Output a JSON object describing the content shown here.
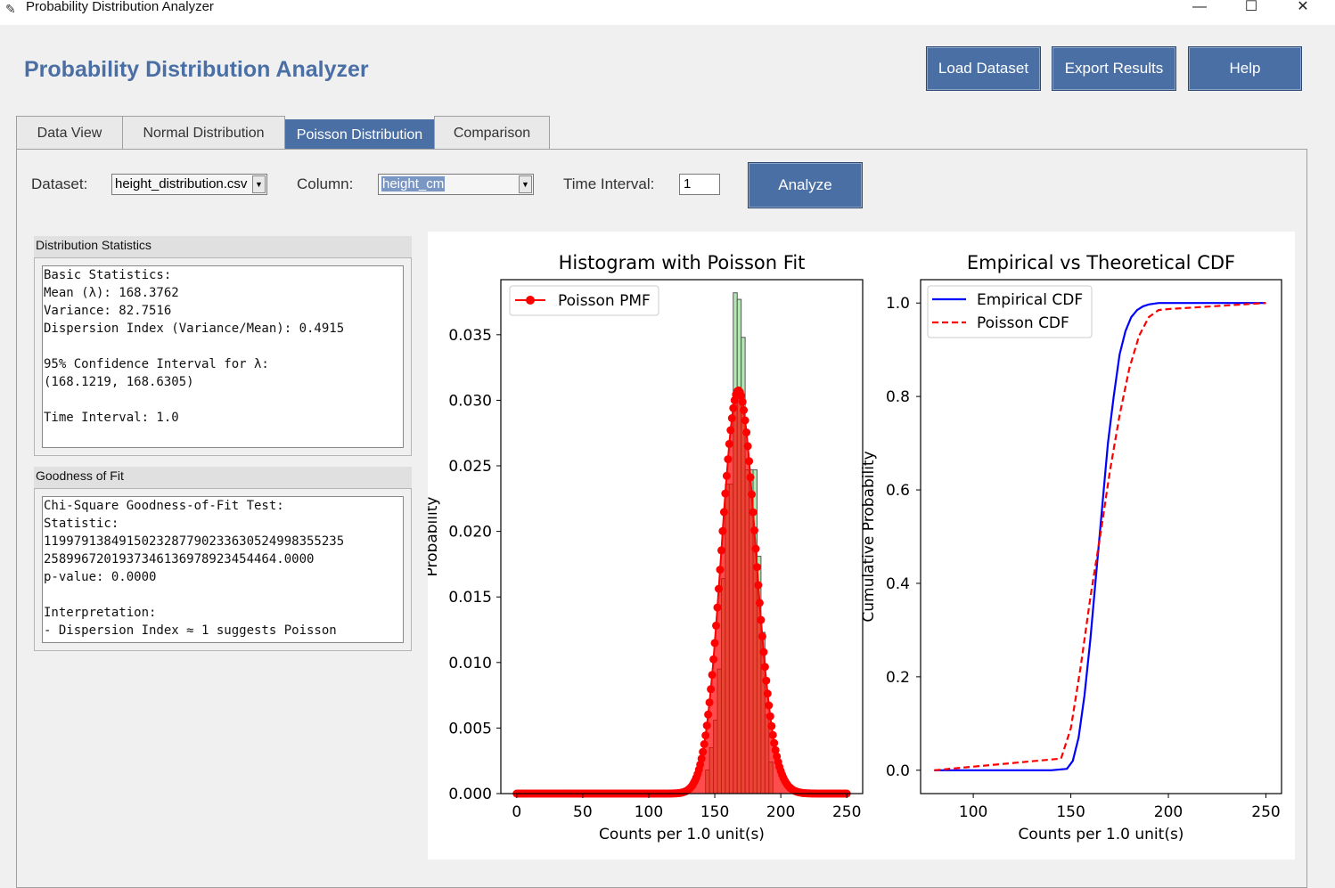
{
  "window": {
    "title": "Probability Distribution Analyzer",
    "minimize_glyph": "—",
    "maximize_glyph": "☐",
    "close_glyph": "✕"
  },
  "header": {
    "title": "Probability Distribution Analyzer",
    "load_label": "Load Dataset",
    "export_label": "Export Results",
    "help_label": "Help"
  },
  "tabs": [
    {
      "label": "Data View"
    },
    {
      "label": "Normal Distribution"
    },
    {
      "label": "Poisson Distribution",
      "active": true
    },
    {
      "label": "Comparison"
    }
  ],
  "controls": {
    "dataset_label": "Dataset:",
    "dataset_value": "height_distribution.csv",
    "column_label": "Column:",
    "column_value": "height_cm",
    "interval_label": "Time Interval:",
    "interval_value": "1",
    "analyze_label": "Analyze"
  },
  "stats": {
    "title": "Distribution Statistics",
    "lines": [
      "Basic Statistics:",
      "Mean (λ): 168.3762",
      "Variance: 82.7516",
      "Dispersion Index (Variance/Mean): 0.4915",
      "",
      "95% Confidence Interval for λ:",
      "(168.1219, 168.6305)",
      "",
      "Time Interval: 1.0"
    ]
  },
  "fit": {
    "title": "Goodness of Fit",
    "lines": [
      "Chi-Square Goodness-of-Fit Test:",
      "Statistic:",
      "119979138491502328779023363052499835523​5",
      "25899672019373461369789234544​64.0000",
      "p-value: 0.0000",
      "",
      "Interpretation:",
      "- Dispersion Index ≈ 1 suggests Poisson"
    ]
  },
  "colors": {
    "accent": "#4a6fa5",
    "hist_fill": "#b3e6b3",
    "pmf": "#ff0000",
    "empirical": "#0000ff",
    "poisson_cdf": "#ff0000"
  },
  "chart_data": [
    {
      "type": "bar",
      "title": "Histogram with Poisson Fit",
      "xlabel": "Counts per 1.0 unit(s)",
      "ylabel": "Probability",
      "xlim": [
        -12,
        262
      ],
      "ylim": [
        0,
        0.0392
      ],
      "xticks": [
        0,
        50,
        100,
        150,
        200,
        250
      ],
      "yticks": [
        0.0,
        0.005,
        0.01,
        0.015,
        0.02,
        0.025,
        0.03,
        0.035
      ],
      "ytick_labels": [
        "0.000",
        "0.005",
        "0.010",
        "0.015",
        "0.020",
        "0.025",
        "0.030",
        "0.035"
      ],
      "legend": [
        "Poisson PMF"
      ],
      "legend_position": "top-left",
      "histogram": {
        "bins": [
          [
            143,
            146
          ],
          [
            146,
            149
          ],
          [
            149,
            152
          ],
          [
            152,
            155
          ],
          [
            155,
            158
          ],
          [
            158,
            161
          ],
          [
            161,
            164
          ],
          [
            164,
            167
          ],
          [
            167,
            170
          ],
          [
            170,
            173
          ],
          [
            173,
            176
          ],
          [
            176,
            179
          ],
          [
            179,
            182
          ],
          [
            182,
            185
          ],
          [
            185,
            188
          ],
          [
            188,
            191
          ],
          [
            191,
            194
          ]
        ],
        "values": [
          0.0018,
          0.0035,
          0.0056,
          0.0095,
          0.0164,
          0.0236,
          0.0236,
          0.0382,
          0.0377,
          0.0348,
          0.0247,
          0.0247,
          0.0247,
          0.0181,
          0.0123,
          0.006,
          0.0024
        ]
      },
      "series": [
        {
          "name": "Poisson PMF",
          "kind": "line-markers",
          "lambda": 168.3762,
          "x_range": [
            0,
            250
          ]
        }
      ]
    },
    {
      "type": "line",
      "title": "Empirical vs Theoretical CDF",
      "xlabel": "Counts per 1.0 unit(s)",
      "ylabel": "Cumulative Probability",
      "xlim": [
        73,
        258
      ],
      "ylim": [
        -0.05,
        1.05
      ],
      "xticks": [
        100,
        150,
        200,
        250
      ],
      "yticks": [
        0.0,
        0.2,
        0.4,
        0.6,
        0.8,
        1.0
      ],
      "ytick_labels": [
        "0.0",
        "0.2",
        "0.4",
        "0.6",
        "0.8",
        "1.0"
      ],
      "legend": [
        "Empirical CDF",
        "Poisson CDF"
      ],
      "legend_position": "top-left",
      "series": [
        {
          "name": "Empirical CDF",
          "style": "solid",
          "x": [
            80,
            140,
            148,
            151,
            154,
            157,
            160,
            163,
            166,
            169,
            172,
            175,
            178,
            181,
            184,
            187,
            190,
            195,
            250
          ],
          "y": [
            0,
            0,
            0.003,
            0.02,
            0.07,
            0.16,
            0.28,
            0.42,
            0.56,
            0.7,
            0.8,
            0.89,
            0.94,
            0.97,
            0.985,
            0.993,
            0.997,
            1.0,
            1.0
          ]
        },
        {
          "name": "Poisson CDF",
          "style": "dashed",
          "x": [
            80,
            145,
            150,
            155,
            160,
            165,
            170,
            175,
            180,
            185,
            190,
            195,
            200,
            250
          ],
          "y": [
            0,
            0.025,
            0.09,
            0.22,
            0.37,
            0.5,
            0.64,
            0.76,
            0.86,
            0.93,
            0.97,
            0.985,
            0.987,
            1.0
          ]
        }
      ]
    }
  ]
}
